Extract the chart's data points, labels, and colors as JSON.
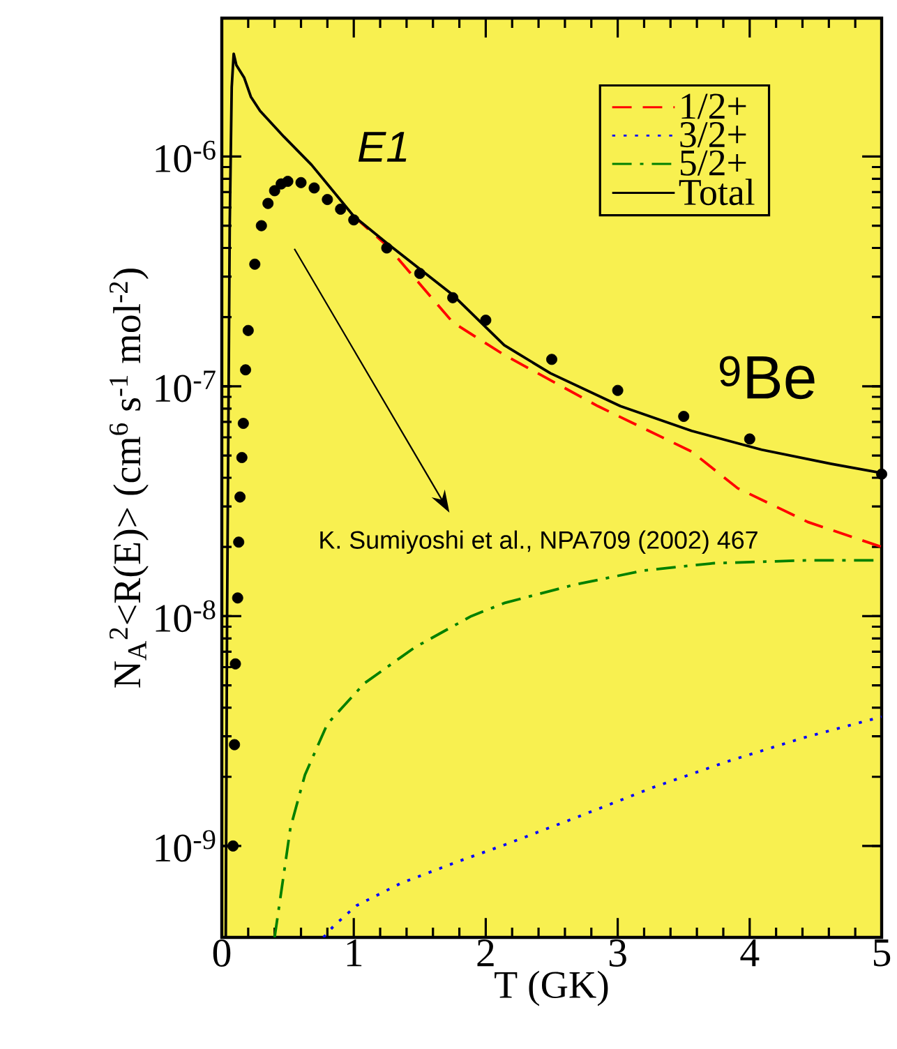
{
  "chart_data": {
    "type": "line",
    "xlabel": "T (GK)",
    "ylabel": "N$_{A}$$^{2}$<R(E)> (cm$^{6}$ s$^{-1}$ mol$^{-2}$)",
    "annotations": [
      "E1",
      "$^{9}$Be",
      "K. Sumiyoshi et al., NPA709 (2002) 467"
    ],
    "series": [
      {
        "name": "1/2+",
        "color": "#ff0000",
        "line_style": "dashed",
        "x": [
          1.0,
          1.25,
          1.75,
          2.0,
          2.14,
          2.85,
          3.56,
          3.91,
          4.44,
          5.0
        ],
        "values": [
          5.5e-07,
          4.1e-07,
          1.9e-07,
          1.54e-07,
          1.37e-07,
          8.2e-08,
          5.2e-08,
          3.6e-08,
          2.57e-08,
          2e-08
        ]
      },
      {
        "name": "3/2+",
        "color": "#0000ff",
        "line_style": "dotted",
        "x": [
          0.77,
          0.85,
          1.02,
          1.36,
          1.8,
          2.14,
          2.7,
          3.27,
          3.84,
          4.41,
          5.0
        ],
        "values": [
          4e-10,
          4.5e-10,
          5.5e-10,
          6.9e-10,
          8.6e-10,
          1.01e-09,
          1.34e-09,
          1.8e-09,
          2.34e-09,
          2.96e-09,
          3.65e-09
        ]
      },
      {
        "name": "5/2+",
        "color": "#008000",
        "line_style": "dashdot",
        "x": [
          0.4,
          0.46,
          0.52,
          0.63,
          0.8,
          1.08,
          1.46,
          1.89,
          2.14,
          2.67,
          3.2,
          3.73,
          4.44,
          5.0
        ],
        "values": [
          4e-10,
          6.9e-10,
          1.2e-09,
          2.04e-09,
          3.4e-09,
          5.1e-09,
          7.3e-09,
          1e-08,
          1.14e-08,
          1.37e-08,
          1.58e-08,
          1.7e-08,
          1.75e-08,
          1.75e-08
        ]
      },
      {
        "name": "Total",
        "color": "#000000",
        "line_style": "solid",
        "x": [
          0.03,
          0.04,
          0.06,
          0.075,
          0.09,
          0.11,
          0.17,
          0.22,
          0.29,
          0.47,
          0.68,
          1.0,
          1.25,
          1.75,
          2.14,
          2.49,
          3.02,
          3.56,
          4.09,
          4.62,
          5.0
        ],
        "values": [
          4e-10,
          1e-08,
          5e-07,
          2e-06,
          2.8e-06,
          2.5e-06,
          2.2e-06,
          1.82e-06,
          1.58e-06,
          1.22e-06,
          9.2e-07,
          5.5e-07,
          4.2e-07,
          2.5e-07,
          1.51e-07,
          1.14e-07,
          8.2e-08,
          6.4e-08,
          5.3e-08,
          4.6e-08,
          4.2e-08
        ]
      },
      {
        "type": "scatter",
        "color": "#000000",
        "marker": "circle",
        "x": [
          0.085,
          0.096,
          0.103,
          0.12,
          0.128,
          0.138,
          0.152,
          0.163,
          0.18,
          0.2,
          0.25,
          0.3,
          0.35,
          0.4,
          0.45,
          0.5,
          0.6,
          0.7,
          0.8,
          0.9,
          1.0,
          1.25,
          1.5,
          1.75,
          2.0,
          2.5,
          3.0,
          3.5,
          4.0,
          5.0
        ],
        "values": [
          1e-09,
          2.76e-09,
          6.2e-09,
          1.2e-08,
          2.1e-08,
          3.3e-08,
          4.9e-08,
          6.9e-08,
          1.18e-07,
          1.75e-07,
          3.4e-07,
          5e-07,
          6.25e-07,
          7.1e-07,
          7.6e-07,
          7.8e-07,
          7.7e-07,
          7.3e-07,
          6.5e-07,
          5.9e-07,
          5.3e-07,
          4e-07,
          3.1e-07,
          2.43e-07,
          1.94e-07,
          1.31e-07,
          9.6e-08,
          7.4e-08,
          5.9e-08,
          4.15e-08
        ]
      }
    ],
    "xlim": [
      0,
      5
    ],
    "xticks": [
      0,
      1,
      2,
      3,
      4,
      5
    ],
    "ylim": [
      4e-10,
      4e-06
    ],
    "yticks": [
      {
        "value": 1e-09,
        "label": "10$^{-9}$"
      },
      {
        "value": 1e-08,
        "label": "10$^{-8}$"
      },
      {
        "value": 1e-07,
        "label": "10$^{-7}$"
      },
      {
        "value": 1e-06,
        "label": "10$^{-6}$"
      }
    ],
    "log": "y",
    "legend": "top right",
    "marker": "none"
  }
}
